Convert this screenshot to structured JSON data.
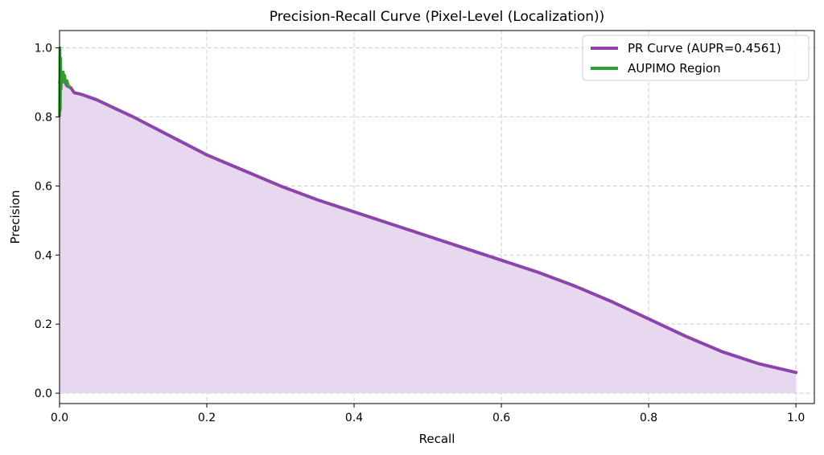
{
  "chart_data": {
    "type": "line",
    "title": "Precision-Recall Curve (Pixel-Level (Localization))",
    "xlabel": "Recall",
    "ylabel": "Precision",
    "xlim": [
      0.0,
      1.025
    ],
    "ylim": [
      -0.03,
      1.05
    ],
    "xticks": [
      "0.0",
      "0.2",
      "0.4",
      "0.6",
      "0.8",
      "1.0"
    ],
    "yticks": [
      "0.0",
      "0.2",
      "0.4",
      "0.6",
      "0.8",
      "1.0"
    ],
    "grid": true,
    "legend_position": "top-right",
    "colors": {
      "pr_curve": "#8e44ad",
      "pr_fill": "#e8d8ef",
      "aupimo": "#2ca02c"
    },
    "series": [
      {
        "name": "PR Curve (AUPR=0.4561)",
        "filled": true,
        "x": [
          0.0,
          0.005,
          0.01,
          0.015,
          0.02,
          0.03,
          0.05,
          0.07,
          0.1,
          0.15,
          0.2,
          0.25,
          0.3,
          0.35,
          0.4,
          0.45,
          0.5,
          0.55,
          0.6,
          0.65,
          0.7,
          0.75,
          0.8,
          0.85,
          0.9,
          0.95,
          1.0
        ],
        "y": [
          0.9,
          0.91,
          0.89,
          0.885,
          0.87,
          0.865,
          0.85,
          0.83,
          0.8,
          0.745,
          0.69,
          0.645,
          0.6,
          0.56,
          0.525,
          0.49,
          0.455,
          0.42,
          0.385,
          0.35,
          0.31,
          0.265,
          0.215,
          0.165,
          0.12,
          0.085,
          0.06
        ]
      },
      {
        "name": "AUPIMO Region",
        "filled": false,
        "x": [
          0.0,
          0.0005,
          0.001,
          0.0015,
          0.002,
          0.003,
          0.004,
          0.005,
          0.006,
          0.007,
          0.008,
          0.01,
          0.012,
          0.015
        ],
        "y": [
          0.8,
          1.0,
          0.82,
          0.97,
          0.88,
          0.92,
          0.9,
          0.93,
          0.91,
          0.92,
          0.9,
          0.905,
          0.89,
          0.885
        ]
      }
    ]
  }
}
